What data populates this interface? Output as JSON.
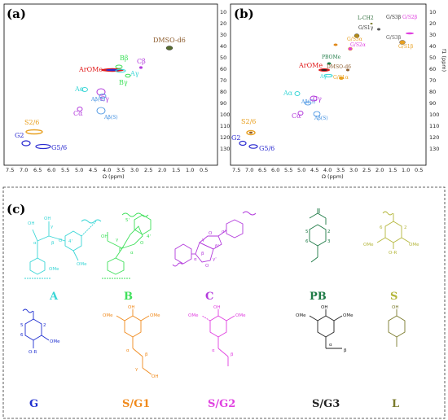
{
  "panels": {
    "a": {
      "tag": "(a)"
    },
    "b": {
      "tag": "(b)"
    },
    "c": {
      "tag": "(c)"
    }
  },
  "spectrum_axes": {
    "x_label": "Ω (ppm)",
    "y_label": "f1 (ppm)",
    "x_ticks": [
      "7.5",
      "7.0",
      "6.5",
      "6.0",
      "5.5",
      "5.0",
      "4.5",
      "4.0",
      "3.5",
      "3.0",
      "2.5",
      "2.0",
      "1.5",
      "1.0",
      "0.5"
    ],
    "y_ticks": [
      "10",
      "20",
      "30",
      "40",
      "50",
      "60",
      "70",
      "80",
      "90",
      "100",
      "110",
      "120",
      "130"
    ]
  },
  "spectrum_a_annotations": {
    "dmso": "DMSO-d6",
    "arome": "ArOMe",
    "b_beta": "Bβ",
    "c_beta": "Cβ",
    "a_gamma": "Aγ",
    "b_gamma": "Bγ",
    "a_alpha": "Aα",
    "c_gamma": "Cγ",
    "a_beta_g": "Aβ(G)",
    "c_alpha": "Cα",
    "a_beta_s": "Aβ(S)",
    "s26": "S2/6",
    "g2": "G2",
    "g56": "G5/6"
  },
  "spectrum_b_annotations": {
    "l_ch2": "L-CH2",
    "g_s3_beta": "G/S3β",
    "g_s2_beta_a": "G/S2β",
    "g_s1_gamma": "G/S1γ",
    "g_s3_alpha": "G/S3α",
    "g_s2_alpha": "G/S2α",
    "g_s1_beta": "G/S1β",
    "g_s1_alpha": "G/S1α",
    "pb_ome": "PBOMe",
    "dmso": "DMSO-d6",
    "arome": "ArOMe",
    "a_gamma": "Aγ",
    "a_alpha": "Aα",
    "a_beta_g": "Aβ(G)",
    "c_gamma": "Cγ",
    "c_alpha": "Cα",
    "a_beta_s": "Aβ(S)",
    "s26": "S2/6",
    "g2": "G2",
    "g56": "G5/6"
  },
  "structures": [
    {
      "key": "A",
      "label": "A",
      "color": "#3ad6d6"
    },
    {
      "key": "B",
      "label": "B",
      "color": "#3ee05a"
    },
    {
      "key": "C",
      "label": "C",
      "color": "#b33bdc"
    },
    {
      "key": "PB",
      "label": "PB",
      "color": "#1d7a45"
    },
    {
      "key": "S",
      "label": "S",
      "color": "#b4b63a"
    },
    {
      "key": "G",
      "label": "G",
      "color": "#1f2fd0"
    },
    {
      "key": "SG1",
      "label": "S/G1",
      "color": "#f08a1c"
    },
    {
      "key": "SG2",
      "label": "S/G2",
      "color": "#e040e0"
    },
    {
      "key": "SG3",
      "label": "S/G3",
      "color": "#222222"
    },
    {
      "key": "L",
      "label": "L",
      "color": "#7a7a2c"
    }
  ],
  "atom_labels": {
    "oh": "OH",
    "ome": "OMe",
    "or": "O-R",
    "o": "O",
    "alpha": "α",
    "beta": "β",
    "gamma": "γ",
    "n4p": "4'",
    "n5p": "5'",
    "n1": "1",
    "n2": "2",
    "n3": "3",
    "n4": "4",
    "n5": "5",
    "n6": "6",
    "alpha_p": "α'",
    "beta_p": "β'",
    "gamma_p": "γ'"
  },
  "colors": {
    "dmso": "#8b5a2b",
    "arome": "#e01818",
    "A": "#3ad6d6",
    "B": "#3ee05a",
    "C": "#b33bdc",
    "S": "#e8a020",
    "G": "#2a2ad0",
    "blue_mid": "#3a8ce0",
    "PB": "#1d7a45"
  }
}
